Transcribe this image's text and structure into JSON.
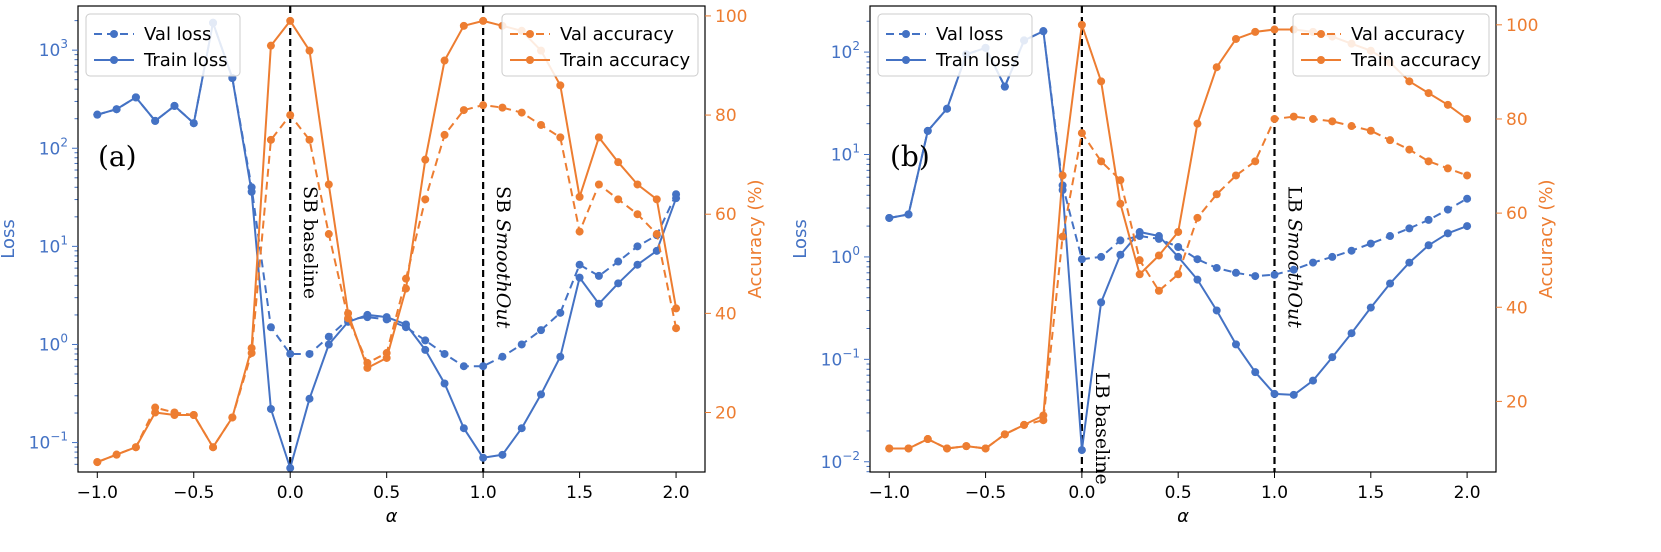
{
  "colors": {
    "loss": "#4472c4",
    "accuracy": "#ed7d31",
    "axis": "#000000",
    "vline": "#000000"
  },
  "chart_data": [
    {
      "type": "line",
      "panel_label": "(a)",
      "xlabel": "α",
      "ylabel_left": "Loss",
      "ylabel_right": "Accuracy (%)",
      "xlim": [
        -1.1,
        2.15
      ],
      "ylim_left_log10": [
        -1.3,
        3.45
      ],
      "ylim_right": [
        8,
        102
      ],
      "x_ticks": [
        "−1.0",
        "−0.5",
        "0.0",
        "0.5",
        "1.0",
        "1.5",
        "2.0"
      ],
      "y_left_ticks": [
        {
          "value": 0.1,
          "base": "10",
          "exp": "−1"
        },
        {
          "value": 1,
          "base": "10",
          "exp": "0"
        },
        {
          "value": 10,
          "base": "10",
          "exp": "1"
        },
        {
          "value": 100,
          "base": "10",
          "exp": "2"
        },
        {
          "value": 1000,
          "base": "10",
          "exp": "3"
        }
      ],
      "y_right_ticks": [
        "20",
        "40",
        "60",
        "80",
        "100"
      ],
      "vlines": [
        {
          "x": 0.0,
          "label": "SB baseline",
          "italic_part": "",
          "label_pos": "upper"
        },
        {
          "x": 1.0,
          "label": "SB ",
          "italic_part": "SmoothOut",
          "label_pos": "upper"
        }
      ],
      "legend_left": [
        "Val loss",
        "Train loss"
      ],
      "legend_right": [
        "Val accuracy",
        "Train accuracy"
      ],
      "x": [
        -1.0,
        -0.9,
        -0.8,
        -0.7,
        -0.6,
        -0.5,
        -0.4,
        -0.3,
        -0.2,
        -0.1,
        0.0,
        0.1,
        0.2,
        0.3,
        0.4,
        0.5,
        0.6,
        0.7,
        0.8,
        0.9,
        1.0,
        1.1,
        1.2,
        1.3,
        1.4,
        1.5,
        1.6,
        1.7,
        1.8,
        1.9,
        2.0
      ],
      "series": [
        {
          "name": "Val loss",
          "axis": "left",
          "style": "dashed",
          "color": "loss",
          "values": [
            220,
            250,
            330,
            190,
            270,
            180,
            1900,
            520,
            40,
            1.5,
            0.8,
            0.8,
            1.2,
            1.8,
            1.9,
            1.8,
            1.5,
            1.1,
            0.8,
            0.6,
            0.6,
            0.75,
            1.0,
            1.4,
            2.1,
            6.5,
            5.0,
            7.0,
            10.0,
            13.0,
            34.0
          ]
        },
        {
          "name": "Train loss",
          "axis": "left",
          "style": "solid",
          "color": "loss",
          "values": [
            220,
            250,
            330,
            190,
            270,
            180,
            1900,
            520,
            36,
            0.22,
            0.055,
            0.28,
            1.0,
            1.7,
            2.0,
            1.9,
            1.6,
            0.88,
            0.4,
            0.14,
            0.07,
            0.075,
            0.14,
            0.31,
            0.75,
            4.8,
            2.6,
            4.2,
            6.5,
            9.0,
            31.0
          ]
        },
        {
          "name": "Val accuracy",
          "axis": "right",
          "style": "dashed",
          "color": "accuracy",
          "values": [
            10,
            11.5,
            13,
            21,
            20,
            19.5,
            13,
            19,
            32,
            75,
            80,
            75,
            56,
            39,
            30,
            32,
            47,
            63,
            76,
            81,
            82,
            81.5,
            80.5,
            78,
            75.5,
            56.5,
            66,
            63,
            60,
            56,
            37
          ]
        },
        {
          "name": "Train accuracy",
          "axis": "right",
          "style": "solid",
          "color": "accuracy",
          "values": [
            10,
            11.5,
            13,
            20,
            19.5,
            19.5,
            13,
            19,
            33,
            94,
            99,
            93,
            66,
            40,
            29,
            31,
            45,
            71,
            91,
            98,
            99,
            98,
            97,
            93,
            86,
            63.5,
            75.5,
            70.5,
            66,
            63,
            41
          ]
        }
      ]
    },
    {
      "type": "line",
      "panel_label": "(b)",
      "xlabel": "α",
      "ylabel_left": "Loss",
      "ylabel_right": "Accuracy (%)",
      "xlim": [
        -1.1,
        2.15
      ],
      "ylim_left_log10": [
        -2.1,
        2.45
      ],
      "ylim_right": [
        5,
        104
      ],
      "x_ticks": [
        "−1.0",
        "−0.5",
        "0.0",
        "0.5",
        "1.0",
        "1.5",
        "2.0"
      ],
      "y_left_ticks": [
        {
          "value": 0.01,
          "base": "10",
          "exp": "−2"
        },
        {
          "value": 0.1,
          "base": "10",
          "exp": "−1"
        },
        {
          "value": 1,
          "base": "10",
          "exp": "0"
        },
        {
          "value": 10,
          "base": "10",
          "exp": "1"
        },
        {
          "value": 100,
          "base": "10",
          "exp": "2"
        }
      ],
      "y_right_ticks": [
        "20",
        "40",
        "60",
        "80",
        "100"
      ],
      "vlines": [
        {
          "x": 0.0,
          "label": "LB baseline",
          "italic_part": "",
          "label_pos": "lower"
        },
        {
          "x": 1.0,
          "label": "LB ",
          "italic_part": "SmoothOut",
          "label_pos": "upper"
        }
      ],
      "legend_left": [
        "Val loss",
        "Train loss"
      ],
      "legend_right": [
        "Val accuracy",
        "Train accuracy"
      ],
      "x": [
        -1.0,
        -0.9,
        -0.8,
        -0.7,
        -0.6,
        -0.5,
        -0.4,
        -0.3,
        -0.2,
        -0.1,
        0.0,
        0.1,
        0.2,
        0.3,
        0.4,
        0.5,
        0.6,
        0.7,
        0.8,
        0.9,
        1.0,
        1.1,
        1.2,
        1.3,
        1.4,
        1.5,
        1.6,
        1.7,
        1.8,
        1.9,
        2.0
      ],
      "series": [
        {
          "name": "Val loss",
          "axis": "left",
          "style": "dashed",
          "color": "loss",
          "values": [
            2.4,
            2.6,
            17,
            28,
            95,
            110,
            46,
            130,
            160,
            5.0,
            0.95,
            1.0,
            1.45,
            1.6,
            1.5,
            1.25,
            0.95,
            0.78,
            0.7,
            0.65,
            0.67,
            0.75,
            0.88,
            1.0,
            1.15,
            1.35,
            1.6,
            1.9,
            2.3,
            2.9,
            3.7
          ]
        },
        {
          "name": "Train loss",
          "axis": "left",
          "style": "solid",
          "color": "loss",
          "values": [
            2.4,
            2.6,
            17,
            28,
            95,
            110,
            46,
            130,
            160,
            4.5,
            0.013,
            0.36,
            1.05,
            1.75,
            1.6,
            1.0,
            0.6,
            0.3,
            0.14,
            0.075,
            0.046,
            0.045,
            0.062,
            0.105,
            0.18,
            0.32,
            0.55,
            0.88,
            1.3,
            1.7,
            2.0
          ]
        },
        {
          "name": "Val accuracy",
          "axis": "right",
          "style": "dashed",
          "color": "accuracy",
          "values": [
            10,
            10,
            12,
            10,
            10.5,
            10,
            13,
            15,
            16,
            55,
            77,
            71,
            67,
            50,
            43.5,
            47,
            59,
            64,
            68,
            71,
            80,
            80.5,
            80,
            79.5,
            78.5,
            77.5,
            75.5,
            73.5,
            71,
            69.5,
            68
          ]
        },
        {
          "name": "Train accuracy",
          "axis": "right",
          "style": "solid",
          "color": "accuracy",
          "values": [
            10,
            10,
            12,
            10,
            10.5,
            10,
            13,
            15,
            17,
            68,
            100,
            88,
            62,
            47,
            51,
            56,
            79,
            91,
            97,
            98.5,
            99,
            99,
            98.5,
            97.5,
            96,
            94.5,
            92,
            88,
            85.5,
            83,
            80
          ]
        }
      ]
    }
  ]
}
